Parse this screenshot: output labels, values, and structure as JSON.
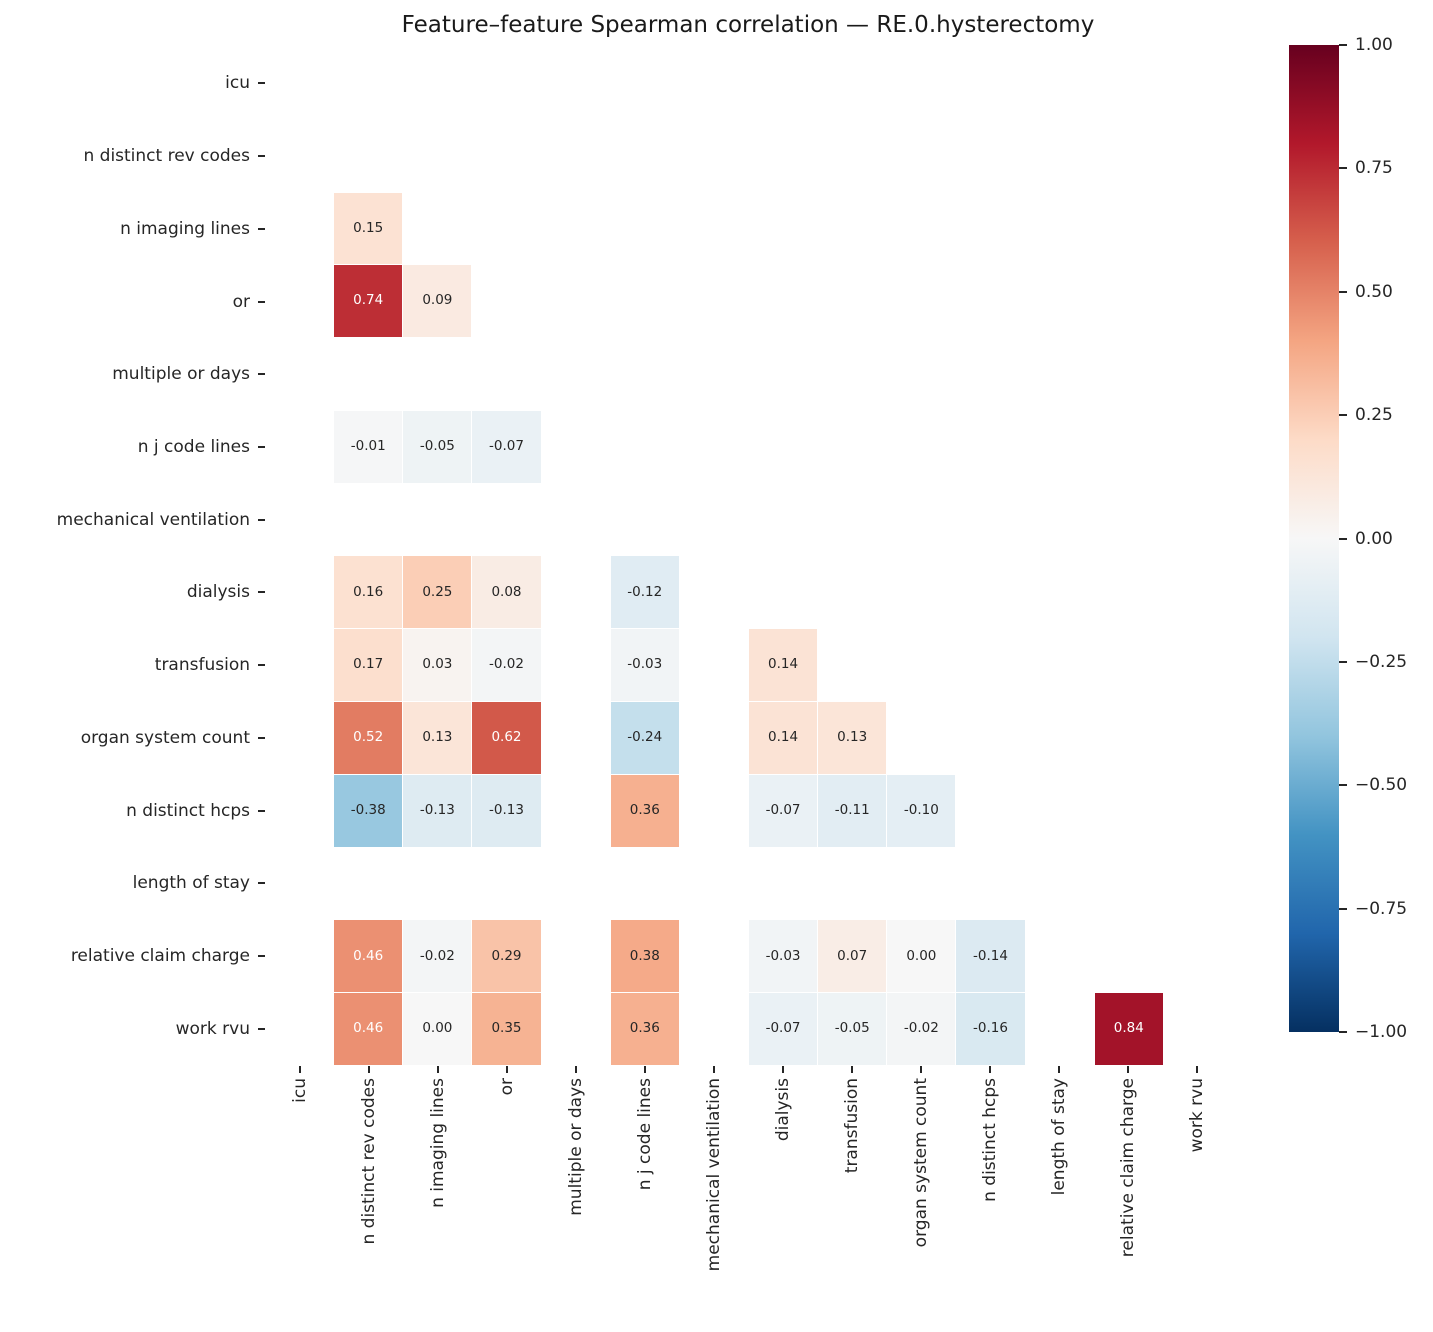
{
  "chart_data": {
    "type": "heatmap",
    "title": "Feature–feature Spearman correlation — RE.0.hysterectomy",
    "labels": [
      "icu",
      "n distinct rev codes",
      "n imaging lines",
      "or",
      "multiple or days",
      "n j code lines",
      "mechanical ventilation",
      "dialysis",
      "transfusion",
      "organ system count",
      "n distinct hcps",
      "length of stay",
      "relative claim charge",
      "work rvu"
    ],
    "matrix": [
      [
        null,
        null,
        null,
        null,
        null,
        null,
        null,
        null,
        null,
        null,
        null,
        null,
        null,
        null
      ],
      [
        null,
        null,
        null,
        null,
        null,
        null,
        null,
        null,
        null,
        null,
        null,
        null,
        null,
        null
      ],
      [
        null,
        0.15,
        null,
        null,
        null,
        null,
        null,
        null,
        null,
        null,
        null,
        null,
        null,
        null
      ],
      [
        null,
        0.74,
        0.09,
        null,
        null,
        null,
        null,
        null,
        null,
        null,
        null,
        null,
        null,
        null
      ],
      [
        null,
        null,
        null,
        null,
        null,
        null,
        null,
        null,
        null,
        null,
        null,
        null,
        null,
        null
      ],
      [
        null,
        -0.01,
        -0.05,
        -0.07,
        null,
        null,
        null,
        null,
        null,
        null,
        null,
        null,
        null,
        null
      ],
      [
        null,
        null,
        null,
        null,
        null,
        null,
        null,
        null,
        null,
        null,
        null,
        null,
        null,
        null
      ],
      [
        null,
        0.16,
        0.25,
        0.08,
        null,
        -0.12,
        null,
        null,
        null,
        null,
        null,
        null,
        null,
        null
      ],
      [
        null,
        0.17,
        0.03,
        -0.02,
        null,
        -0.03,
        null,
        0.14,
        null,
        null,
        null,
        null,
        null,
        null
      ],
      [
        null,
        0.52,
        0.13,
        0.62,
        null,
        -0.24,
        null,
        0.14,
        0.13,
        null,
        null,
        null,
        null,
        null
      ],
      [
        null,
        -0.38,
        -0.13,
        -0.13,
        null,
        0.36,
        null,
        -0.07,
        -0.11,
        -0.1,
        null,
        null,
        null,
        null
      ],
      [
        null,
        null,
        null,
        null,
        null,
        null,
        null,
        null,
        null,
        null,
        null,
        null,
        null,
        null
      ],
      [
        null,
        0.46,
        -0.02,
        0.29,
        null,
        0.38,
        null,
        -0.03,
        0.07,
        0.0,
        -0.14,
        null,
        null,
        null
      ],
      [
        null,
        0.46,
        0.0,
        0.35,
        null,
        0.36,
        null,
        -0.07,
        -0.05,
        -0.02,
        -0.16,
        null,
        0.84,
        null
      ]
    ],
    "vmin": -1,
    "vmax": 1,
    "value_format": "2 decimals",
    "mask": "upper triangle and all-NaN features shown blank (white)",
    "colormap": {
      "name": "RdBu_r",
      "anchors_low_to_high": [
        "#053061",
        "#2166ac",
        "#4393c3",
        "#92c5de",
        "#d1e5f0",
        "#f7f7f7",
        "#fddbc7",
        "#f4a582",
        "#d6604d",
        "#b2182b",
        "#67001f"
      ]
    },
    "colorbar": {
      "position": "right",
      "tick_labels": [
        "1.00",
        "0.75",
        "0.50",
        "0.25",
        "0.00",
        "−0.25",
        "−0.50",
        "−0.75",
        "−1.00"
      ]
    },
    "annotation_text_dark": "#262626",
    "annotation_text_light": "#ffffff",
    "background": "#ffffff",
    "grid": false
  }
}
